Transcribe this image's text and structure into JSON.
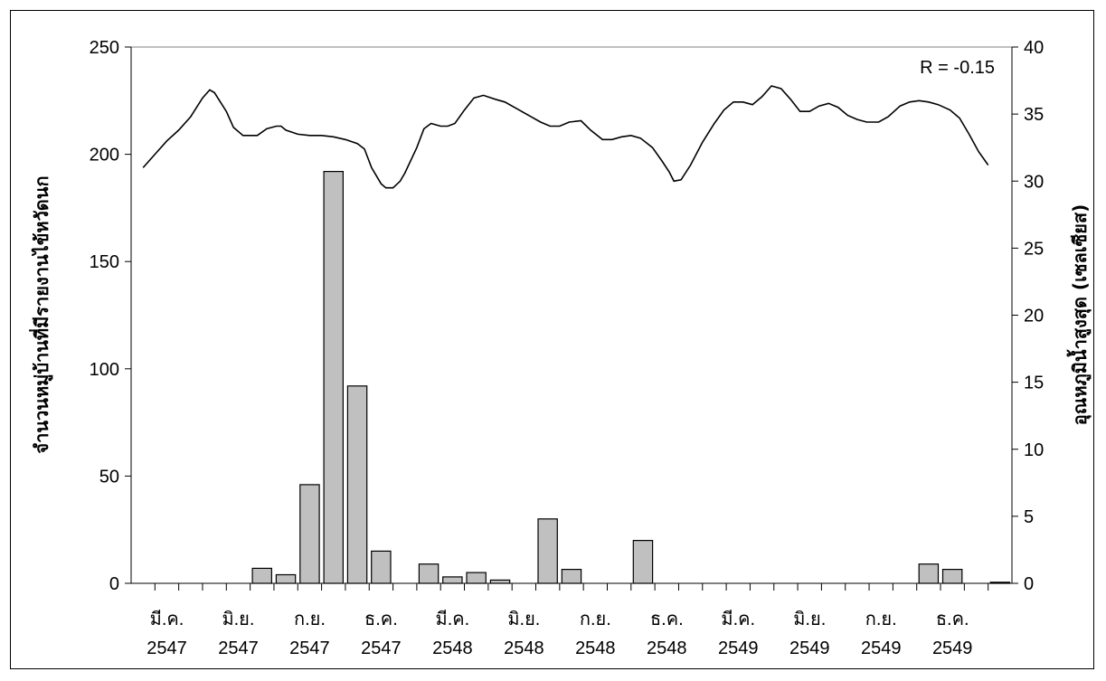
{
  "chart_data": {
    "type": "bar",
    "annotation": "R = -0.15",
    "ylabel_left": "จำนวนหมู่บ้านที่มีรายงานไข้หวัดนก",
    "ylabel_right": "อุณหภูมิน้ำสูงสุด (เซลเซียส)",
    "y_left": {
      "min": 0,
      "max": 250,
      "ticks": [
        0,
        50,
        100,
        150,
        200,
        250
      ]
    },
    "y_right": {
      "min": 0,
      "max": 40,
      "ticks": [
        0,
        5,
        10,
        15,
        20,
        25,
        30,
        35,
        40
      ]
    },
    "x_ticks": [
      {
        "month": "มี.ค.",
        "year": "2547"
      },
      {
        "month": "มิ.ย.",
        "year": "2547"
      },
      {
        "month": "ก.ย.",
        "year": "2547"
      },
      {
        "month": "ธ.ค.",
        "year": "2547"
      },
      {
        "month": "มี.ค.",
        "year": "2548"
      },
      {
        "month": "มิ.ย.",
        "year": "2548"
      },
      {
        "month": "ก.ย.",
        "year": "2548"
      },
      {
        "month": "ธ.ค.",
        "year": "2548"
      },
      {
        "month": "มี.ค.",
        "year": "2549"
      },
      {
        "month": "มิ.ย.",
        "year": "2549"
      },
      {
        "month": "ก.ย.",
        "year": "2549"
      },
      {
        "month": "ธ.ค.",
        "year": "2549"
      }
    ],
    "bar_series": {
      "color": "#c0c0c0",
      "values": [
        0,
        0,
        0,
        0,
        0,
        7,
        4,
        46,
        192,
        92,
        15,
        0,
        9,
        3,
        5,
        1.5,
        0,
        30,
        6.5,
        0,
        0,
        20,
        0,
        0,
        0,
        0,
        0,
        0,
        0,
        0,
        0,
        0,
        0,
        9,
        6.5,
        0,
        0.5
      ]
    },
    "line_series": {
      "color": "#000000",
      "points": [
        [
          0,
          31.0
        ],
        [
          0.5,
          32.0
        ],
        [
          1,
          33.0
        ],
        [
          1.5,
          33.8
        ],
        [
          2,
          34.8
        ],
        [
          2.5,
          36.2
        ],
        [
          2.8,
          36.8
        ],
        [
          3,
          36.6
        ],
        [
          3.5,
          35.2
        ],
        [
          3.8,
          34.0
        ],
        [
          4.2,
          33.4
        ],
        [
          4.8,
          33.4
        ],
        [
          5.2,
          33.9
        ],
        [
          5.6,
          34.1
        ],
        [
          5.8,
          34.1
        ],
        [
          6,
          33.8
        ],
        [
          6.5,
          33.5
        ],
        [
          7,
          33.4
        ],
        [
          7.5,
          33.4
        ],
        [
          8,
          33.3
        ],
        [
          8.5,
          33.1
        ],
        [
          9,
          32.8
        ],
        [
          9.3,
          32.4
        ],
        [
          9.6,
          31.0
        ],
        [
          10,
          29.8
        ],
        [
          10.2,
          29.5
        ],
        [
          10.5,
          29.5
        ],
        [
          10.8,
          30.0
        ],
        [
          11,
          30.6
        ],
        [
          11.5,
          32.5
        ],
        [
          11.8,
          33.9
        ],
        [
          12.1,
          34.3
        ],
        [
          12.5,
          34.1
        ],
        [
          12.8,
          34.1
        ],
        [
          13.1,
          34.3
        ],
        [
          13.5,
          35.3
        ],
        [
          13.9,
          36.2
        ],
        [
          14.3,
          36.4
        ],
        [
          14.8,
          36.1
        ],
        [
          15.2,
          35.9
        ],
        [
          15.7,
          35.4
        ],
        [
          16.2,
          34.9
        ],
        [
          16.7,
          34.4
        ],
        [
          17.1,
          34.1
        ],
        [
          17.5,
          34.1
        ],
        [
          17.9,
          34.4
        ],
        [
          18.4,
          34.5
        ],
        [
          18.8,
          33.8
        ],
        [
          19.3,
          33.1
        ],
        [
          19.7,
          33.1
        ],
        [
          20.1,
          33.3
        ],
        [
          20.5,
          33.4
        ],
        [
          20.9,
          33.2
        ],
        [
          21.4,
          32.5
        ],
        [
          21.8,
          31.5
        ],
        [
          22.1,
          30.7
        ],
        [
          22.3,
          30.0
        ],
        [
          22.6,
          30.1
        ],
        [
          23,
          31.2
        ],
        [
          23.5,
          32.9
        ],
        [
          24,
          34.3
        ],
        [
          24.4,
          35.3
        ],
        [
          24.8,
          35.9
        ],
        [
          25.2,
          35.9
        ],
        [
          25.6,
          35.7
        ],
        [
          26,
          36.3
        ],
        [
          26.4,
          37.1
        ],
        [
          26.8,
          36.9
        ],
        [
          27.2,
          36.1
        ],
        [
          27.6,
          35.2
        ],
        [
          28,
          35.2
        ],
        [
          28.4,
          35.6
        ],
        [
          28.8,
          35.8
        ],
        [
          29.2,
          35.5
        ],
        [
          29.6,
          34.9
        ],
        [
          30,
          34.6
        ],
        [
          30.4,
          34.4
        ],
        [
          30.9,
          34.4
        ],
        [
          31.3,
          34.8
        ],
        [
          31.8,
          35.6
        ],
        [
          32.2,
          35.9
        ],
        [
          32.6,
          36.0
        ],
        [
          33,
          35.9
        ],
        [
          33.4,
          35.7
        ],
        [
          33.9,
          35.3
        ],
        [
          34.3,
          34.7
        ],
        [
          34.7,
          33.5
        ],
        [
          35.1,
          32.2
        ],
        [
          35.5,
          31.2
        ]
      ]
    },
    "legend": "none",
    "grid": false
  }
}
